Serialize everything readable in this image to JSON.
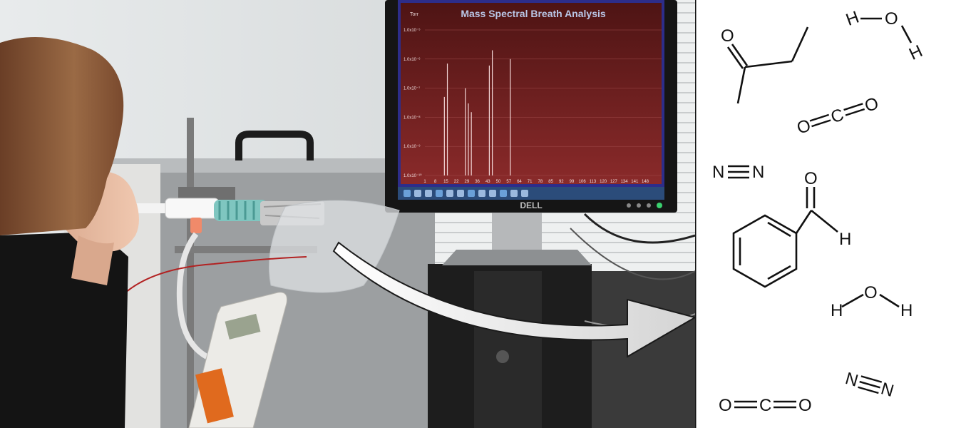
{
  "monitor": {
    "title": "Mass Spectral Breath Analysis",
    "unit": "Torr",
    "brand": "DELL",
    "y_ticks": [
      "1.0x10⁻⁵",
      "1.0x10⁻⁶",
      "1.0x10⁻⁷",
      "1.0x10⁻⁸",
      "1.0x10⁻⁹",
      "1.0x10⁻¹⁰"
    ],
    "x_ticks": [
      "1",
      "8",
      "15",
      "22",
      "29",
      "36",
      "43",
      "50",
      "57",
      "64",
      "71",
      "78",
      "85",
      "92",
      "99",
      "106",
      "113",
      "120",
      "127",
      "134",
      "141",
      "148"
    ],
    "colors": {
      "plot_bg": "#7a1c1c",
      "peak": "#f2d6d6"
    }
  },
  "chart_data": {
    "type": "bar",
    "title": "Mass Spectral Breath Analysis",
    "ylabel": "Torr",
    "y_scale": "log",
    "ylim": [
      1e-10,
      1e-05
    ],
    "xlim": [
      1,
      148
    ],
    "x": [
      14,
      16,
      28,
      30,
      32,
      44,
      46,
      58
    ],
    "values": [
      5e-08,
      7e-07,
      1e-07,
      3e-08,
      1.5e-08,
      6e-07,
      2e-06,
      1e-06
    ]
  },
  "molecules": {
    "butanone": {
      "atoms": [
        "O"
      ]
    },
    "water_top": {
      "atoms": [
        "H",
        "O",
        "H"
      ]
    },
    "co2_top": {
      "atoms": [
        "O",
        "C",
        "O"
      ]
    },
    "n2_left": {
      "atoms": [
        "N",
        "N"
      ]
    },
    "benzaldehyde": {
      "atoms": [
        "O",
        "H"
      ]
    },
    "water_mid": {
      "atoms": [
        "H",
        "O",
        "H"
      ]
    },
    "n2_bottom": {
      "atoms": [
        "N",
        "N"
      ]
    },
    "co2_bottom": {
      "atoms": [
        "O",
        "C",
        "O"
      ]
    }
  }
}
